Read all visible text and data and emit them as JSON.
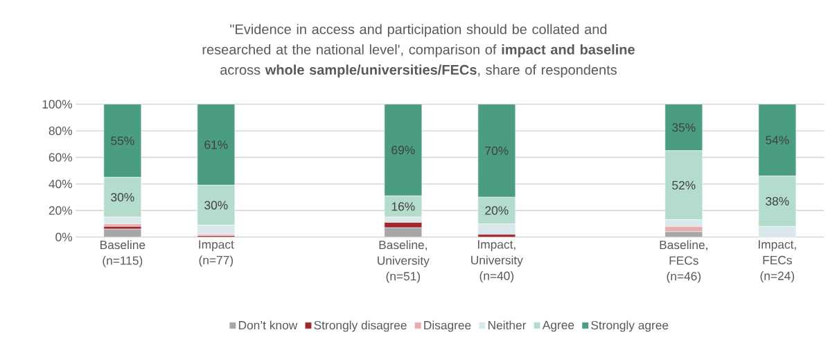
{
  "chart_data": {
    "type": "bar",
    "stacked": true,
    "title": "\"Evidence in access and participation should be collated and researched at the national level', comparison of **impact and baseline** across **whole sample/universities/FECs**, share of respondents",
    "categories": [
      "Baseline (n=115)",
      "Impact (n=77)",
      null,
      "Baseline, University (n=51)",
      "Impact, University (n=40)",
      null,
      "Baseline, FECs (n=46)",
      "Impact, FECs (n=24)"
    ],
    "series": [
      {
        "name": "Don’t know",
        "color": "#a6a6a6",
        "values": [
          6,
          0,
          null,
          7,
          0,
          null,
          4,
          0
        ]
      },
      {
        "name": "Strongly disagree",
        "color": "#a0282c",
        "values": [
          2,
          1,
          null,
          4,
          2,
          null,
          0,
          0
        ]
      },
      {
        "name": "Disagree",
        "color": "#e6aeae",
        "values": [
          2,
          1,
          null,
          0,
          0,
          null,
          4,
          0
        ]
      },
      {
        "name": "Neither",
        "color": "#d9e8ea",
        "values": [
          5,
          7,
          null,
          4,
          8,
          null,
          5,
          8
        ]
      },
      {
        "name": "Agree",
        "color": "#b4dccd",
        "values": [
          30,
          30,
          null,
          16,
          20,
          null,
          52,
          38
        ],
        "value_labels": [
          "30%",
          "30%",
          null,
          "16%",
          "20%",
          null,
          "52%",
          "38%"
        ]
      },
      {
        "name": "Strongly agree",
        "color": "#4b9d7f",
        "values": [
          55,
          61,
          null,
          69,
          70,
          null,
          35,
          54
        ],
        "value_labels": [
          "55%",
          "61%",
          null,
          "69%",
          "70%",
          null,
          "35%",
          "54%"
        ]
      }
    ],
    "ylim": [
      0,
      100
    ],
    "yticks": [
      {
        "value": 0,
        "label": "0%"
      },
      {
        "value": 20,
        "label": "20%"
      },
      {
        "value": 40,
        "label": "40%"
      },
      {
        "value": 60,
        "label": "60%"
      },
      {
        "value": 80,
        "label": "80%"
      },
      {
        "value": 100,
        "label": "100%"
      }
    ],
    "grid": "y",
    "legend": "bottom"
  }
}
